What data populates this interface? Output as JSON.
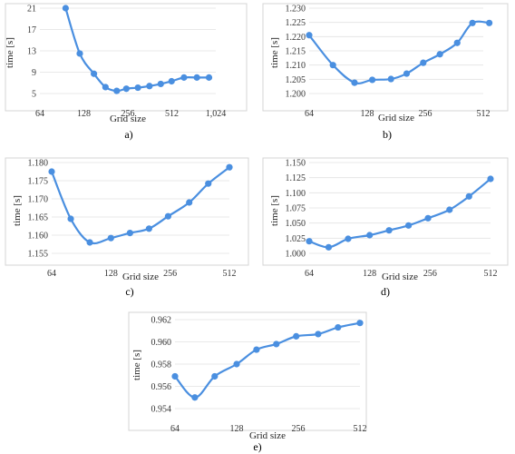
{
  "chart_data": [
    {
      "type": "line",
      "caption": "a)",
      "xlabel": "Grid size",
      "ylabel": "time [s]",
      "x_scale": "log2",
      "xlim": [
        64,
        1024
      ],
      "ylim": [
        5,
        21
      ],
      "x_ticks": [
        64,
        128,
        256,
        512,
        1024
      ],
      "x_tick_labels": [
        "64",
        "128",
        "256",
        "512",
        "1,024"
      ],
      "y_ticks": [
        5,
        9,
        13,
        17,
        21
      ],
      "y_tick_labels": [
        "5",
        "9",
        "13",
        "17",
        "21"
      ],
      "grid": "horizontal",
      "x": [
        96,
        120,
        150,
        180,
        215,
        250,
        300,
        360,
        430,
        510,
        620,
        760,
        920
      ],
      "y": [
        21,
        12.5,
        8.7,
        6.2,
        5.5,
        5.9,
        6.1,
        6.4,
        6.8,
        7.3,
        8.0,
        8.0,
        8.0
      ]
    },
    {
      "type": "line",
      "caption": "b)",
      "xlabel": "Grid size",
      "ylabel": "time [s]",
      "x_scale": "log2",
      "xlim": [
        64,
        512
      ],
      "ylim": [
        1.2,
        1.23
      ],
      "x_ticks": [
        64,
        128,
        256,
        512
      ],
      "x_tick_labels": [
        "64",
        "128",
        "256",
        "512"
      ],
      "y_ticks": [
        1.2,
        1.205,
        1.21,
        1.215,
        1.22,
        1.225,
        1.23
      ],
      "y_tick_labels": [
        "1.200",
        "1.205",
        "1.210",
        "1.215",
        "1.220",
        "1.225",
        "1.230"
      ],
      "grid": "horizontal",
      "x": [
        64,
        85,
        110,
        136,
        170,
        205,
        250,
        305,
        375,
        450,
        550
      ],
      "y": [
        1.2205,
        1.21,
        1.2038,
        1.2048,
        1.2051,
        1.207,
        1.2108,
        1.2138,
        1.2178,
        1.2248,
        1.2248
      ]
    },
    {
      "type": "line",
      "caption": "c)",
      "xlabel": "Grid size",
      "ylabel": "time [s]",
      "x_scale": "log2",
      "xlim": [
        64,
        512
      ],
      "ylim": [
        1.155,
        1.18
      ],
      "x_ticks": [
        64,
        128,
        256,
        512
      ],
      "x_tick_labels": [
        "64",
        "128",
        "256",
        "512"
      ],
      "y_ticks": [
        1.155,
        1.16,
        1.165,
        1.17,
        1.175,
        1.18
      ],
      "y_tick_labels": [
        "1.155",
        "1.160",
        "1.165",
        "1.170",
        "1.175",
        "1.180"
      ],
      "grid": "horizontal",
      "x": [
        64,
        80,
        100,
        128,
        160,
        200,
        250,
        320,
        400,
        512
      ],
      "y": [
        1.1775,
        1.1645,
        1.158,
        1.1592,
        1.1606,
        1.1618,
        1.1652,
        1.169,
        1.1742,
        1.1787
      ]
    },
    {
      "type": "line",
      "caption": "d)",
      "xlabel": "Grid size",
      "ylabel": "time [s]",
      "x_scale": "log2",
      "xlim": [
        64,
        512
      ],
      "ylim": [
        1.0,
        1.15
      ],
      "x_ticks": [
        64,
        128,
        256,
        512
      ],
      "x_tick_labels": [
        "64",
        "128",
        "256",
        "512"
      ],
      "y_ticks": [
        1.0,
        1.025,
        1.05,
        1.075,
        1.1,
        1.125,
        1.15
      ],
      "y_tick_labels": [
        "1.000",
        "1.025",
        "1.050",
        "1.075",
        "1.100",
        "1.125",
        "1.150"
      ],
      "grid": "horizontal",
      "x": [
        64,
        80,
        100,
        128,
        160,
        200,
        250,
        320,
        400,
        512
      ],
      "y": [
        1.02,
        1.01,
        1.024,
        1.03,
        1.038,
        1.046,
        1.058,
        1.072,
        1.094,
        1.123
      ]
    },
    {
      "type": "line",
      "caption": "e)",
      "xlabel": "Grid size",
      "ylabel": "time [s]",
      "x_scale": "log2",
      "xlim": [
        64,
        512
      ],
      "ylim": [
        0.954,
        0.962
      ],
      "x_ticks": [
        64,
        128,
        256,
        512
      ],
      "x_tick_labels": [
        "64",
        "128",
        "256",
        "512"
      ],
      "y_ticks": [
        0.954,
        0.956,
        0.958,
        0.96,
        0.962
      ],
      "y_tick_labels": [
        "0.954",
        "0.956",
        "0.958",
        "0.960",
        "0.962"
      ],
      "grid": "horizontal",
      "x": [
        64,
        80,
        100,
        128,
        160,
        200,
        250,
        320,
        400,
        512
      ],
      "y": [
        0.9569,
        0.955,
        0.9569,
        0.958,
        0.9593,
        0.9598,
        0.9605,
        0.9607,
        0.9613,
        0.9617
      ]
    }
  ]
}
